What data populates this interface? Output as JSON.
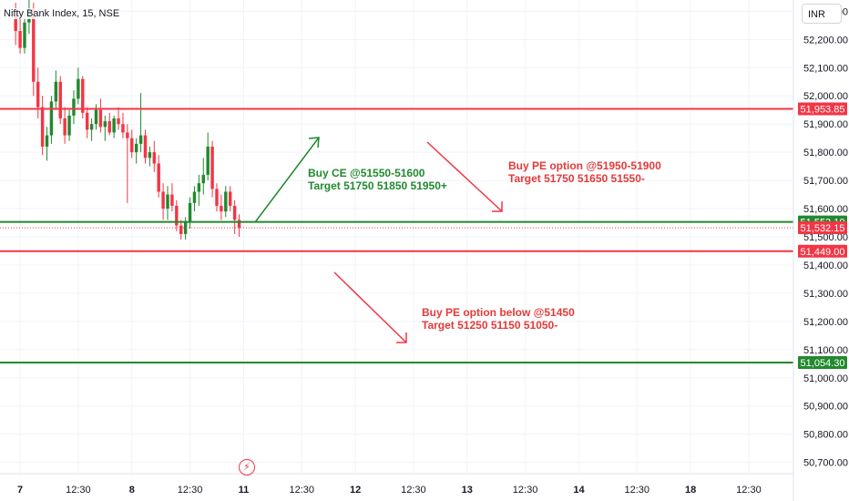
{
  "header": {
    "symbol": "Nifty Bank Index, 15, NSE",
    "currency": "INR"
  },
  "colors": {
    "up": "#22892f",
    "down": "#f23645",
    "hline_red": "#f23645",
    "hline_green": "#22892f",
    "grid": "#f0f3fa"
  },
  "annotations": {
    "ce": {
      "line1": "Buy CE @51550-51600",
      "line2": "Target 51750 51850 51950+"
    },
    "pe_top": {
      "line1": "Buy PE option @51950-51900",
      "line2": "Target 51750 51650 51550-"
    },
    "pe_bottom": {
      "line1": "Buy PE option below @51450",
      "line2": "Target 51250 51150 51050-"
    }
  },
  "event_icon": "lightning-icon",
  "chart_data": {
    "type": "candlestick",
    "title": "Nifty Bank Index, 15, NSE",
    "ylim": [
      50660,
      52340
    ],
    "y_ticks": [
      "52,300.00",
      "52,200.00",
      "52,100.00",
      "52,000.00",
      "51,900.00",
      "51,800.00",
      "51,700.00",
      "51,600.00",
      "51,500.00",
      "51,400.00",
      "51,300.00",
      "51,200.00",
      "51,100.00",
      "51,000.00",
      "50,900.00",
      "50,800.00",
      "50,700.00"
    ],
    "x_ticks": [
      {
        "label": "7",
        "t": 1
      },
      {
        "label": "12:30",
        "t": 14
      },
      {
        "label": "8",
        "t": 26
      },
      {
        "label": "12:30",
        "t": 39
      },
      {
        "label": "11",
        "t": 51
      },
      {
        "label": "12:30",
        "t": 64
      },
      {
        "label": "12",
        "t": 76
      },
      {
        "label": "12:30",
        "t": 89
      },
      {
        "label": "13",
        "t": 101
      },
      {
        "label": "12:30",
        "t": 114
      },
      {
        "label": "14",
        "t": 126
      },
      {
        "label": "12:30",
        "t": 139
      },
      {
        "label": "18",
        "t": 151
      },
      {
        "label": "12:30",
        "t": 164
      }
    ],
    "x_range": [
      -3.5,
      174
    ],
    "price_lines": [
      {
        "name": "resistance",
        "value": 51953.85,
        "label": "51,953.85",
        "color": "red"
      },
      {
        "name": "buy-ce",
        "value": 51553.1,
        "label": "51,553.10",
        "color": "green"
      },
      {
        "name": "last-price",
        "value": 51532.15,
        "label": "51,532.15",
        "color": "red",
        "dotted": true
      },
      {
        "name": "support",
        "value": 51449.0,
        "label": "51,449.00",
        "color": "red"
      },
      {
        "name": "target-low",
        "value": 51054.3,
        "label": "51,054.30",
        "color": "green"
      }
    ],
    "candles": [
      [
        52290,
        52330,
        52180,
        52230
      ],
      [
        52230,
        52280,
        52150,
        52170
      ],
      [
        52170,
        52300,
        52150,
        52260
      ],
      [
        52260,
        52340,
        52220,
        52310
      ],
      [
        52310,
        52330,
        52000,
        52050
      ],
      [
        52050,
        52100,
        51920,
        51960
      ],
      [
        51960,
        52000,
        51790,
        51820
      ],
      [
        51820,
        51890,
        51770,
        51860
      ],
      [
        51860,
        52000,
        51830,
        51980
      ],
      [
        51980,
        52090,
        51950,
        52050
      ],
      [
        52050,
        52070,
        51900,
        51920
      ],
      [
        51920,
        51960,
        51830,
        51860
      ],
      [
        51860,
        51950,
        51840,
        51930
      ],
      [
        51930,
        52020,
        51900,
        51990
      ],
      [
        51990,
        52100,
        51970,
        52060
      ],
      [
        52060,
        52070,
        51920,
        51940
      ],
      [
        51940,
        51960,
        51850,
        51880
      ],
      [
        51880,
        51920,
        51840,
        51900
      ],
      [
        51900,
        51970,
        51880,
        51950
      ],
      [
        51950,
        51990,
        51870,
        51890
      ],
      [
        51890,
        51930,
        51840,
        51910
      ],
      [
        51910,
        51940,
        51860,
        51870
      ],
      [
        51870,
        51930,
        51850,
        51920
      ],
      [
        51920,
        51960,
        51880,
        51900
      ],
      [
        51900,
        51940,
        51850,
        51870
      ],
      [
        51870,
        51900,
        51620,
        51850
      ],
      [
        51850,
        51880,
        51780,
        51800
      ],
      [
        51800,
        51850,
        51760,
        51830
      ],
      [
        51830,
        52010,
        51800,
        51860
      ],
      [
        51860,
        51880,
        51760,
        51780
      ],
      [
        51780,
        51820,
        51750,
        51800
      ],
      [
        51800,
        51840,
        51730,
        51760
      ],
      [
        51760,
        51790,
        51640,
        51660
      ],
      [
        51660,
        51690,
        51560,
        51600
      ],
      [
        51600,
        51680,
        51560,
        51650
      ],
      [
        51650,
        51690,
        51590,
        51610
      ],
      [
        51610,
        51630,
        51520,
        51540
      ],
      [
        51540,
        51560,
        51490,
        51510
      ],
      [
        51510,
        51570,
        51490,
        51550
      ],
      [
        51550,
        51640,
        51530,
        51620
      ],
      [
        51620,
        51680,
        51590,
        51660
      ],
      [
        51660,
        51720,
        51610,
        51690
      ],
      [
        51690,
        51780,
        51650,
        51720
      ],
      [
        51720,
        51870,
        51700,
        51820
      ],
      [
        51820,
        51840,
        51640,
        51670
      ],
      [
        51670,
        51690,
        51590,
        51610
      ],
      [
        51610,
        51650,
        51560,
        51590
      ],
      [
        51590,
        51680,
        51570,
        51660
      ],
      [
        51660,
        51680,
        51590,
        51610
      ],
      [
        51610,
        51630,
        51510,
        51560
      ],
      [
        51560,
        51580,
        51500,
        51532
      ]
    ]
  }
}
